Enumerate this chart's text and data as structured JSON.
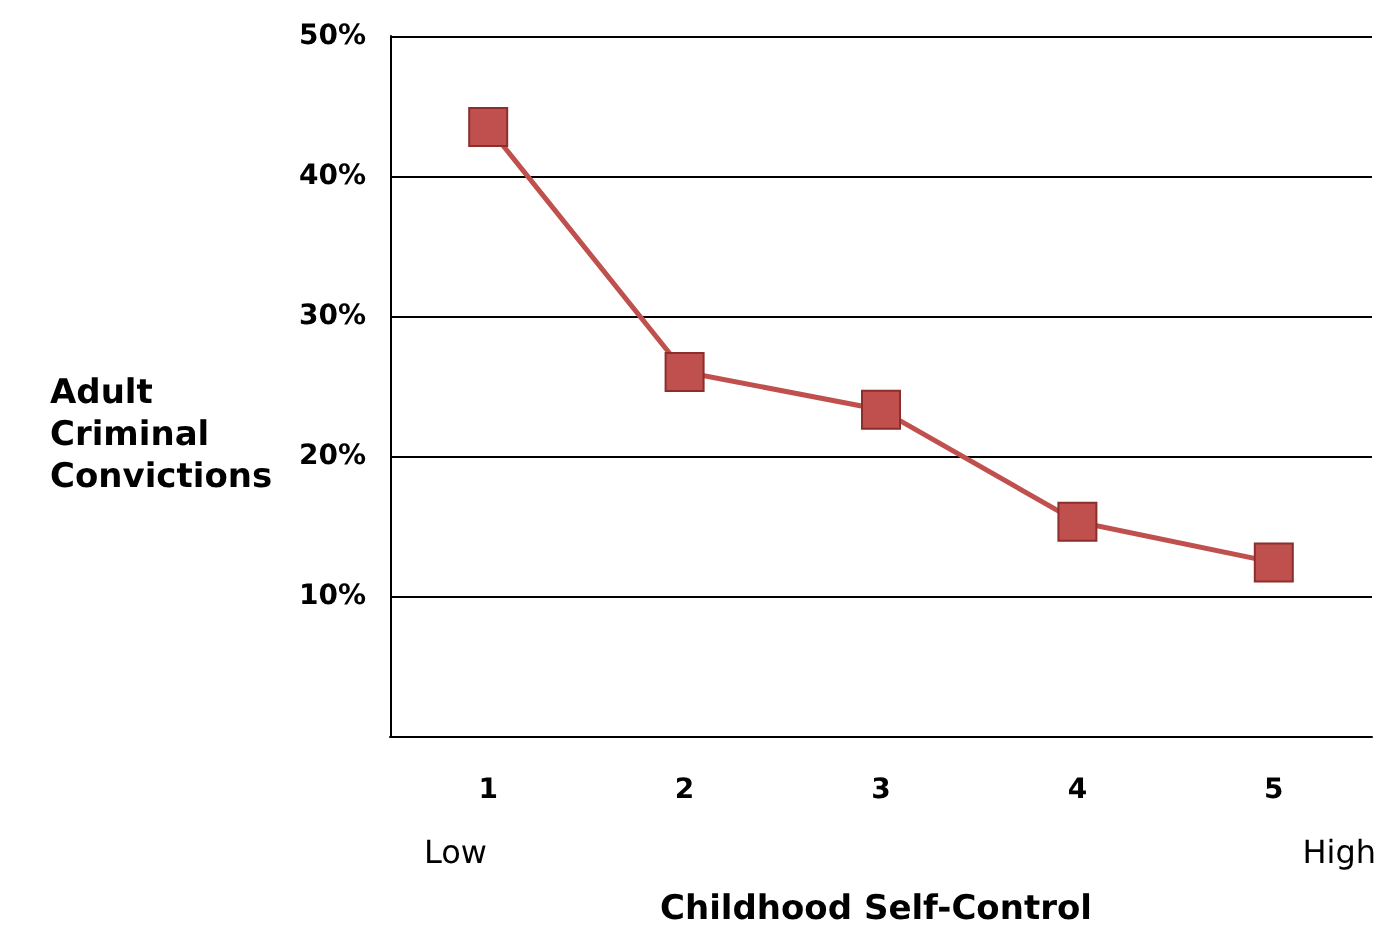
{
  "chart_data": {
    "type": "line",
    "xlabel": "Childhood Self-Control",
    "ylabel": "Adult Criminal Convictions",
    "categories": [
      "1",
      "2",
      "3",
      "4",
      "5"
    ],
    "series": [
      {
        "color": "#c0504d",
        "values": [
          43.5,
          26.0,
          23.3,
          15.3,
          12.4
        ]
      }
    ],
    "ylim": [
      0,
      50
    ],
    "yticks": [
      {
        "value": 0,
        "label": null
      },
      {
        "value": 10,
        "label": "10%"
      },
      {
        "value": 20,
        "label": "20%"
      },
      {
        "value": 30,
        "label": "30%"
      },
      {
        "value": 40,
        "label": "40%"
      },
      {
        "value": 50,
        "label": "50%"
      }
    ],
    "annotations": [
      "Low",
      "High"
    ],
    "grid": "y",
    "marker": "square",
    "line_style": "solid"
  }
}
